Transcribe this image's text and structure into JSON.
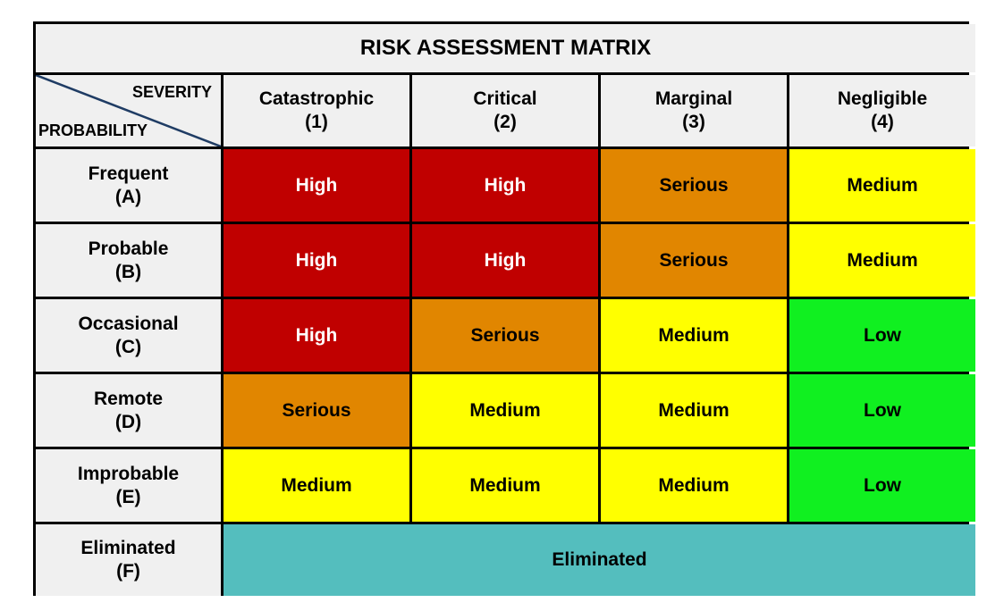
{
  "title": "RISK ASSESSMENT MATRIX",
  "corner": {
    "top_label": "SEVERITY",
    "bottom_label": "PROBABILITY"
  },
  "severity": [
    {
      "name": "Catastrophic",
      "code": "(1)"
    },
    {
      "name": "Critical",
      "code": "(2)"
    },
    {
      "name": "Marginal",
      "code": "(3)"
    },
    {
      "name": "Negligible",
      "code": "(4)"
    }
  ],
  "probability": [
    {
      "name": "Frequent",
      "code": "(A)"
    },
    {
      "name": "Probable",
      "code": "(B)"
    },
    {
      "name": "Occasional",
      "code": "(C)"
    },
    {
      "name": "Remote",
      "code": "(D)"
    },
    {
      "name": "Improbable",
      "code": "(E)"
    },
    {
      "name": "Eliminated",
      "code": "(F)"
    }
  ],
  "matrix": [
    [
      "High",
      "High",
      "Serious",
      "Medium"
    ],
    [
      "High",
      "High",
      "Serious",
      "Medium"
    ],
    [
      "High",
      "Serious",
      "Medium",
      "Low"
    ],
    [
      "Serious",
      "Medium",
      "Medium",
      "Low"
    ],
    [
      "Medium",
      "Medium",
      "Medium",
      "Low"
    ]
  ],
  "eliminated_label": "Eliminated",
  "colors": {
    "High": "#c00000",
    "Serious": "#e18600",
    "Medium": "#ffff00",
    "Low": "#10f020",
    "Eliminated": "#54bebe",
    "header_bg": "#f0f0f0",
    "diagonal": "#1f3c64"
  }
}
